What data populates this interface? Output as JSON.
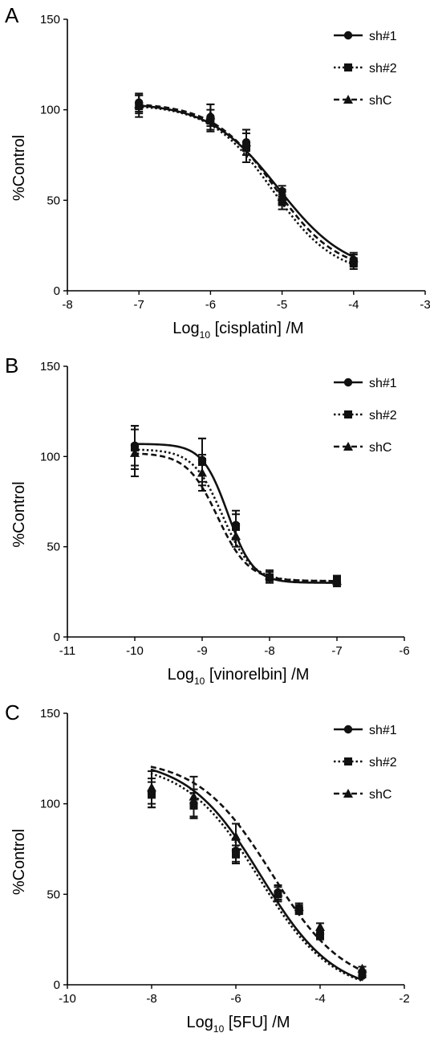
{
  "chart_data": [
    {
      "type": "line",
      "panel_label": "A",
      "xlabel_main": "Log",
      "xlabel_sub": "10",
      "xlabel_rest": " [cisplatin] /M",
      "ylabel": "%Control",
      "xlim": [
        -8,
        -3
      ],
      "ylim": [
        0,
        150
      ],
      "xticks": [
        -8,
        -7,
        -6,
        -5,
        -4,
        -3
      ],
      "yticks": [
        0,
        50,
        100,
        150
      ],
      "legend_position": "top-right",
      "series": [
        {
          "name": "sh#1",
          "marker": "circle",
          "dash": "solid",
          "x": [
            -7,
            -6,
            -5.5,
            -5,
            -4
          ],
          "y": [
            104,
            96,
            82,
            55,
            17
          ],
          "err": [
            5,
            7,
            7,
            3,
            3
          ],
          "fit": {
            "top": 104,
            "bottom": 9,
            "logEC50": -5.05,
            "hill": 0.9
          }
        },
        {
          "name": "sh#2",
          "marker": "square",
          "dash": "dot",
          "x": [
            -7,
            -6,
            -5.5,
            -5,
            -4
          ],
          "y": [
            102,
            94,
            79,
            49,
            15
          ],
          "err": [
            6,
            6,
            8,
            4,
            3
          ],
          "fit": {
            "top": 103,
            "bottom": 8,
            "logEC50": -5.13,
            "hill": 1.0
          }
        },
        {
          "name": "shC",
          "marker": "triangle",
          "dash": "dash",
          "x": [
            -7,
            -6,
            -5.5,
            -5,
            -4
          ],
          "y": [
            103,
            97,
            82,
            52,
            18
          ],
          "err": [
            5,
            6,
            7,
            4,
            3
          ],
          "fit": {
            "top": 104,
            "bottom": 10,
            "logEC50": -5.1,
            "hill": 1.0
          }
        }
      ]
    },
    {
      "type": "line",
      "panel_label": "B",
      "xlabel_main": "Log",
      "xlabel_sub": "10",
      "xlabel_rest": " [vinorelbin] /M",
      "ylabel": "%Control",
      "xlim": [
        -11,
        -6
      ],
      "ylim": [
        0,
        150
      ],
      "xticks": [
        -11,
        -10,
        -9,
        -8,
        -7,
        -6
      ],
      "yticks": [
        0,
        50,
        100,
        150
      ],
      "legend_position": "top-right",
      "series": [
        {
          "name": "sh#1",
          "marker": "circle",
          "dash": "solid",
          "x": [
            -10,
            -9,
            -8.5,
            -8,
            -7
          ],
          "y": [
            106,
            98,
            62,
            33,
            30
          ],
          "err": [
            11,
            12,
            8,
            3,
            2
          ],
          "fit": {
            "top": 107,
            "bottom": 30,
            "logEC50": -8.62,
            "hill": 2.3
          }
        },
        {
          "name": "sh#2",
          "marker": "square",
          "dash": "dot",
          "x": [
            -10,
            -9,
            -8.5,
            -8,
            -7
          ],
          "y": [
            105,
            97,
            61,
            33,
            32
          ],
          "err": [
            12,
            13,
            7,
            3,
            2
          ],
          "fit": {
            "top": 104,
            "bottom": 31,
            "logEC50": -8.7,
            "hill": 2.0
          }
        },
        {
          "name": "shC",
          "marker": "triangle",
          "dash": "dash",
          "x": [
            -10,
            -9,
            -8.5,
            -8,
            -7
          ],
          "y": [
            102,
            91,
            56,
            34,
            31
          ],
          "err": [
            13,
            10,
            6,
            3,
            2
          ],
          "fit": {
            "top": 102,
            "bottom": 31,
            "logEC50": -8.77,
            "hill": 1.9
          }
        }
      ]
    },
    {
      "type": "line",
      "panel_label": "C",
      "xlabel_main": "Log",
      "xlabel_sub": "10",
      "xlabel_rest": " [5FU] /M",
      "ylabel": "%Control",
      "xlim": [
        -10,
        -2
      ],
      "ylim": [
        0,
        150
      ],
      "xticks": [
        -10,
        -8,
        -6,
        -4,
        -2
      ],
      "yticks": [
        0,
        50,
        100,
        150
      ],
      "legend_position": "top-right",
      "series": [
        {
          "name": "sh#1",
          "marker": "circle",
          "dash": "solid",
          "x": [
            -8,
            -7,
            -6,
            -5,
            -4.5,
            -4,
            -3
          ],
          "y": [
            106,
            100,
            74,
            51,
            42,
            28,
            5
          ],
          "err": [
            8,
            8,
            6,
            4,
            2,
            2,
            1
          ],
          "fit": {
            "top": 125,
            "bottom": -5,
            "logEC50": -5.4,
            "hill": 0.5
          }
        },
        {
          "name": "sh#2",
          "marker": "square",
          "dash": "dot",
          "x": [
            -8,
            -7,
            -6,
            -5,
            -4.5,
            -4,
            -3
          ],
          "y": [
            105,
            99,
            72,
            50,
            41,
            27,
            6
          ],
          "err": [
            7,
            7,
            5,
            4,
            2,
            2,
            1
          ],
          "fit": {
            "top": 123,
            "bottom": -5,
            "logEC50": -5.45,
            "hill": 0.5
          }
        },
        {
          "name": "shC",
          "marker": "triangle",
          "dash": "dash",
          "x": [
            -8,
            -7,
            -6,
            -5,
            -4.5,
            -4,
            -3
          ],
          "y": [
            109,
            104,
            82,
            51,
            43,
            32,
            9
          ],
          "err": [
            9,
            11,
            7,
            4,
            2,
            2,
            1
          ],
          "fit": {
            "top": 125,
            "bottom": -2,
            "logEC50": -5.15,
            "hill": 0.5
          }
        }
      ]
    }
  ]
}
